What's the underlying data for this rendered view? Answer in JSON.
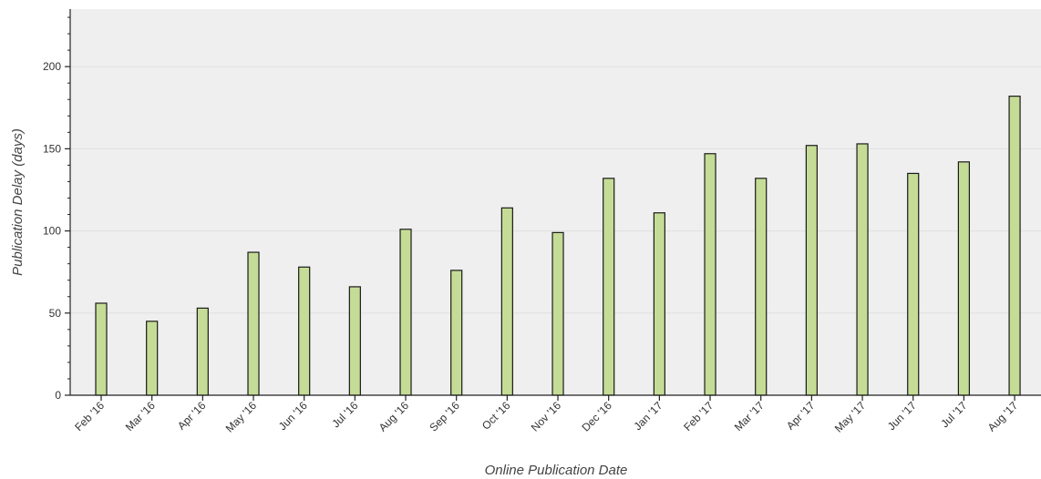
{
  "chart_data": {
    "type": "bar",
    "title": "",
    "xlabel": "Online Publication Date",
    "ylabel": "Publication Delay (days)",
    "categories": [
      "Feb '16",
      "Mar '16",
      "Apr '16",
      "May '16",
      "Jun '16",
      "Jul '16",
      "Aug '16",
      "Sep '16",
      "Oct '16",
      "Nov '16",
      "Dec '16",
      "Jan '17",
      "Feb '17",
      "Mar '17",
      "Apr '17",
      "May '17",
      "Jun '17",
      "Jul '17",
      "Aug '17"
    ],
    "values": [
      56,
      45,
      53,
      87,
      78,
      66,
      101,
      76,
      114,
      99,
      132,
      111,
      147,
      132,
      152,
      153,
      135,
      142,
      182
    ],
    "ylim": [
      0,
      235
    ],
    "yticks": [
      0,
      50,
      100,
      150,
      200
    ],
    "ytick_labels": [
      "0",
      "50",
      "100",
      "150",
      "200"
    ],
    "grid": true,
    "legend": "none",
    "colors": {
      "plot_background": "#efefef",
      "bar_fill": "#c5dc96",
      "bar_stroke": "#1a1a1a",
      "grid": "#e0e0e0",
      "axis": "#222222"
    }
  }
}
